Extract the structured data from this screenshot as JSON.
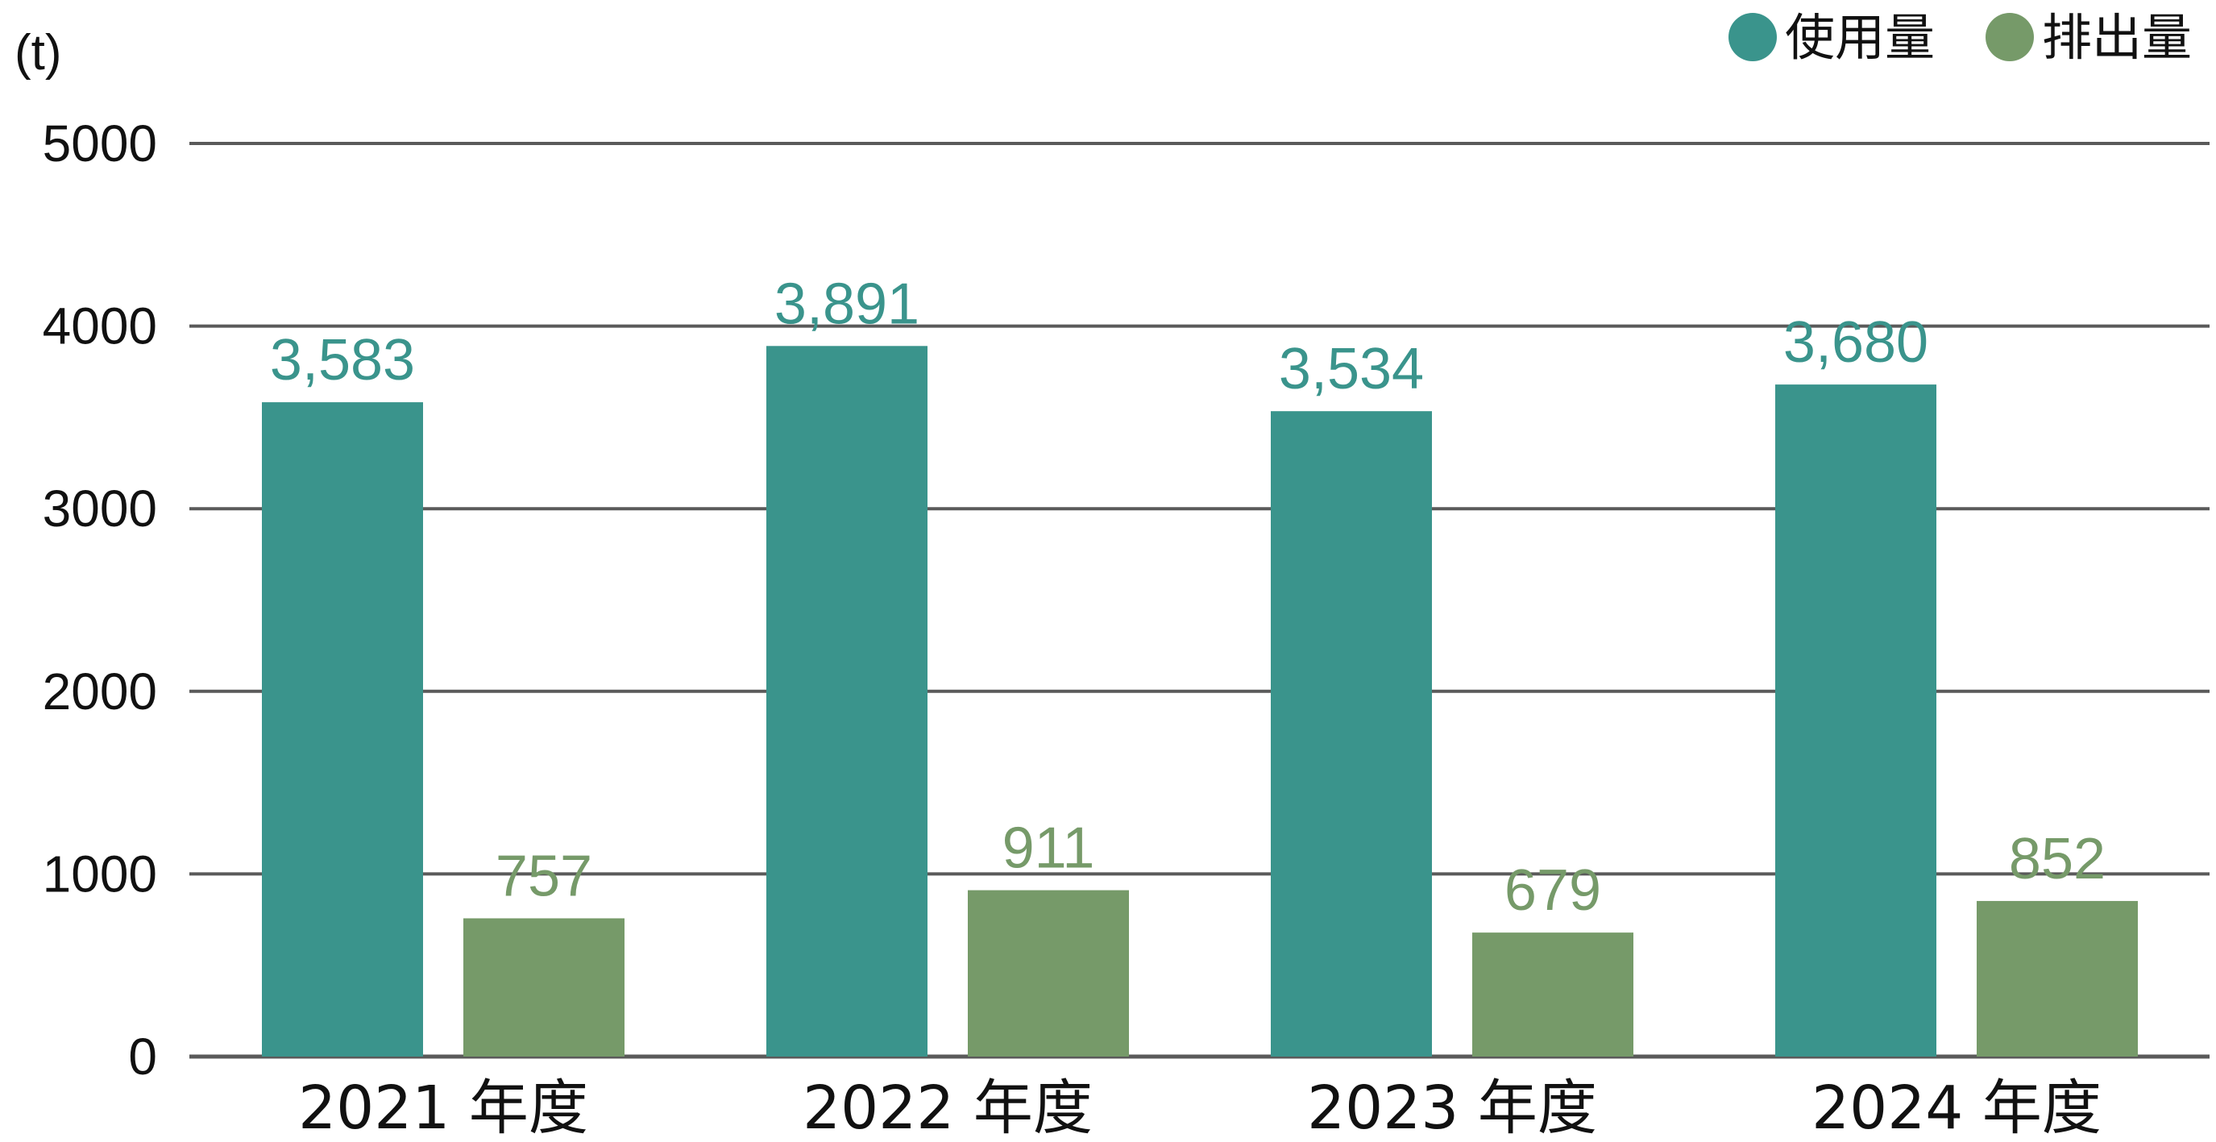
{
  "chart_data": {
    "type": "bar",
    "unit_label": "(t)",
    "categories": [
      "2021 年度",
      "2022 年度",
      "2023 年度",
      "2024 年度"
    ],
    "series": [
      {
        "name": "使用量",
        "values": [
          3583,
          3891,
          3534,
          3680
        ],
        "labels": [
          "3,583",
          "3,891",
          "3,534",
          "3,680"
        ],
        "color": "#3a948c"
      },
      {
        "name": "排出量",
        "values": [
          757,
          911,
          679,
          852
        ],
        "labels": [
          "757",
          "911",
          "679",
          "852"
        ],
        "color": "#769a69"
      }
    ],
    "ylim": [
      0,
      5000
    ],
    "yticks": [
      "0",
      "1000",
      "2000",
      "3000",
      "4000",
      "5000"
    ],
    "grid": true,
    "legend_position": "top-right"
  }
}
